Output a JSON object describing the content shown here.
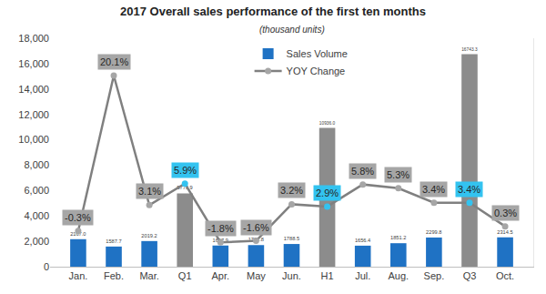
{
  "chart_data": {
    "type": "bar",
    "title": "2017 Overall sales performance of the first ten months",
    "subtitle": "(thousand units)",
    "categories": [
      "Jan.",
      "Feb.",
      "Mar.",
      "Q1",
      "Apr.",
      "May",
      "Jun.",
      "H1",
      "Jul.",
      "Aug.",
      "Sep.",
      "Q3",
      "Oct."
    ],
    "series": [
      {
        "name": "Sales Volume",
        "type": "bar",
        "colors": [
          "#1f72c4",
          "#1f72c4",
          "#1f72c4",
          "#8c8c8c",
          "#1f72c4",
          "#1f72c4",
          "#1f72c4",
          "#8c8c8c",
          "#1f72c4",
          "#1f72c4",
          "#1f72c4",
          "#8c8c8c",
          "#1f72c4"
        ],
        "values": [
          2167.0,
          1587.7,
          2019.2,
          5773.9,
          1667.9,
          1702.8,
          1788.5,
          10936.0,
          1656.4,
          1851.2,
          2299.8,
          16743.3,
          2314.5
        ],
        "value_labels": [
          "2167.0",
          "1587.7",
          "2019.2",
          "5773.9",
          "1667.9",
          "1702.8",
          "1788.5",
          "10936.0",
          "1656.4",
          "1851.2",
          "2299.8",
          "16743.3",
          "2314.5"
        ]
      },
      {
        "name": "YOY Change",
        "type": "line",
        "axis": "y2",
        "color": "#808080",
        "marker": "circle",
        "colors": [
          "#a6a6a6",
          "#a6a6a6",
          "#a6a6a6",
          "#33c3f0",
          "#a6a6a6",
          "#a6a6a6",
          "#a6a6a6",
          "#33c3f0",
          "#a6a6a6",
          "#a6a6a6",
          "#a6a6a6",
          "#33c3f0",
          "#a6a6a6"
        ],
        "values": [
          -0.3,
          20.1,
          3.1,
          5.9,
          -1.8,
          -1.6,
          3.2,
          2.9,
          5.8,
          5.3,
          3.4,
          3.4,
          0.3
        ],
        "value_labels": [
          "-0.3%",
          "20.1%",
          "3.1%",
          "5.9%",
          "-1.8%",
          "-1.6%",
          "3.2%",
          "2.9%",
          "5.8%",
          "5.3%",
          "3.4%",
          "3.4%",
          "0.3%"
        ]
      }
    ],
    "ylim": [
      0,
      18000
    ],
    "yticks": [
      0,
      {
        "value": 2000,
        "label": "2,000"
      },
      {
        "value": 4000,
        "label": "4,000"
      },
      {
        "value": 6000,
        "label": "6,000"
      },
      {
        "value": 8000,
        "label": "8,000"
      },
      {
        "value": 10000,
        "label": "10,000"
      },
      {
        "value": 12000,
        "label": "12,000"
      },
      {
        "value": 14000,
        "label": "14,000"
      },
      {
        "value": 16000,
        "label": "16,000"
      },
      {
        "value": 18000,
        "label": "18,000"
      }
    ],
    "y2lim": [
      -5,
      25
    ],
    "y2ticks": [],
    "grid": false,
    "legend": "upper center",
    "data_labels": true
  }
}
